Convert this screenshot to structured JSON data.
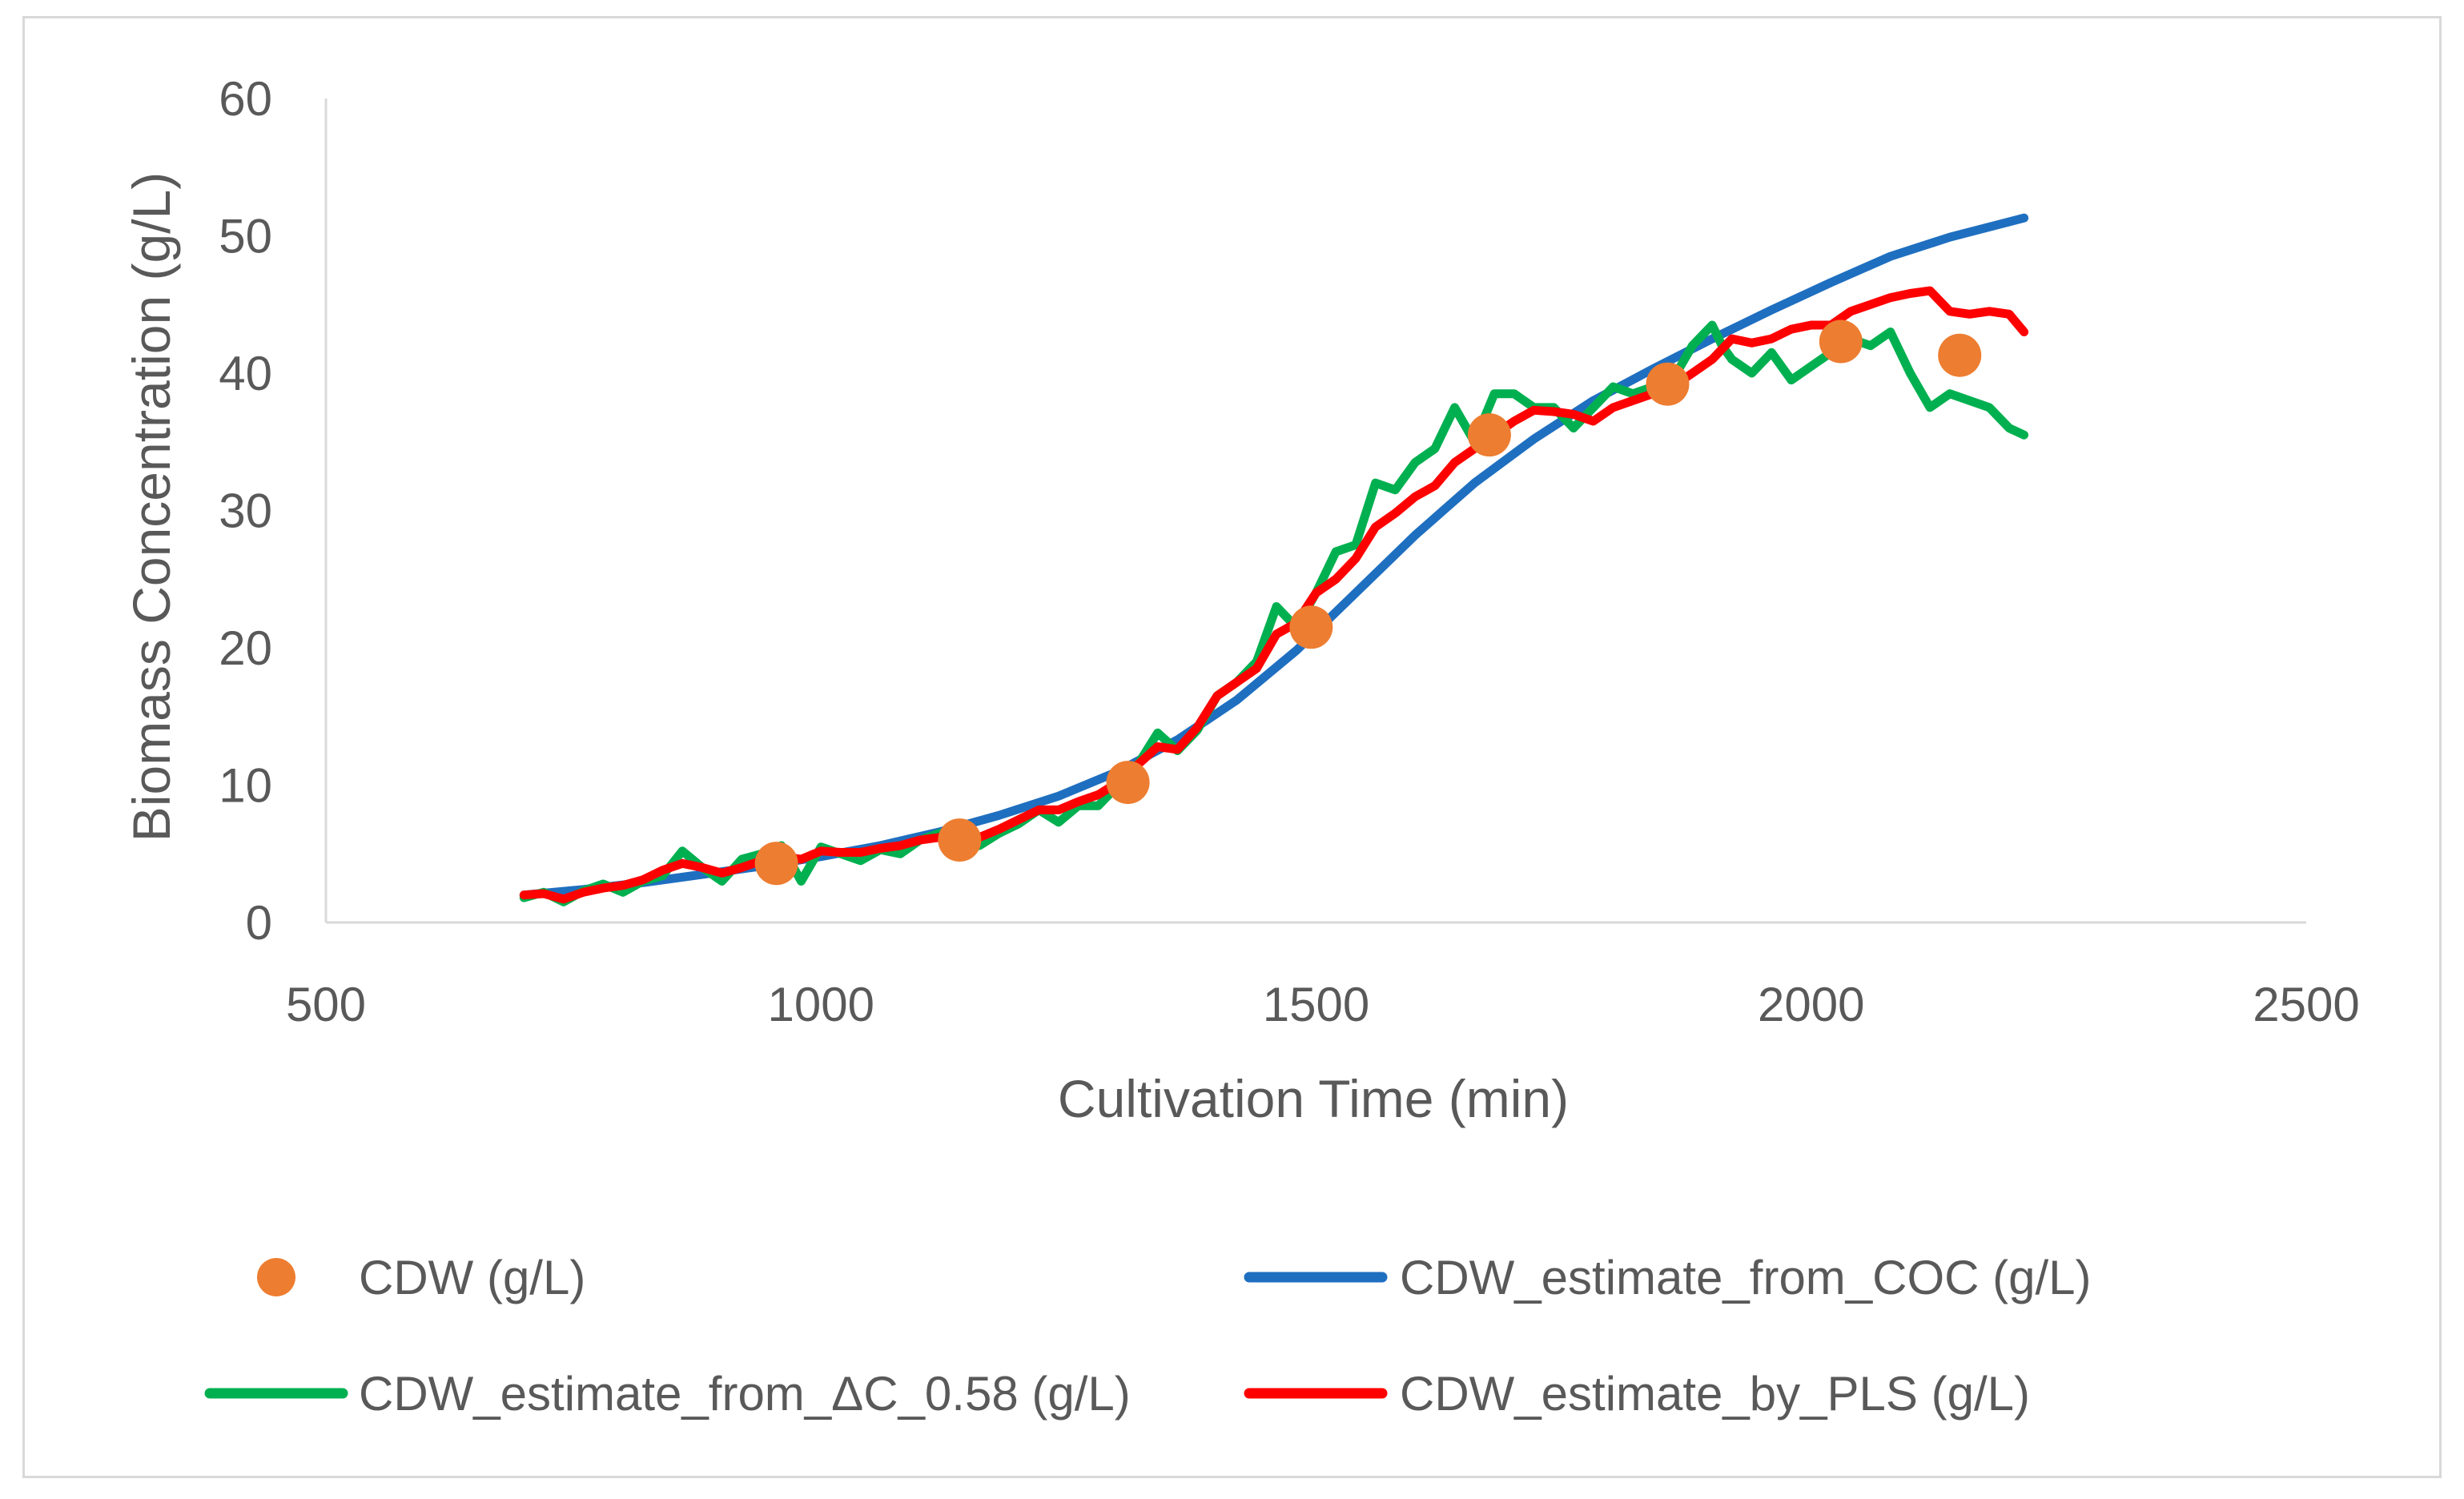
{
  "colors": {
    "axis": "#d9d9d9",
    "text": "#595959",
    "cdw": "#ed7d31",
    "coc": "#1f6fc0",
    "dc": "#00b050",
    "pls": "#ff0000"
  },
  "chart_data": {
    "type": "line",
    "title": "",
    "xlabel": "Cultivation Time (min)",
    "ylabel": "Biomass Concentration (g/L)",
    "xlim": [
      500,
      2500
    ],
    "ylim": [
      0,
      60
    ],
    "xticks": [
      500,
      1000,
      1500,
      2000,
      2500
    ],
    "yticks": [
      0,
      10,
      20,
      30,
      40,
      50,
      60
    ],
    "grid": false,
    "legend_position": "bottom",
    "series": [
      {
        "name": "CDW (g/L)",
        "kind": "scatter",
        "color": "#ed7d31",
        "x": [
          955,
          1140,
          1310,
          1495,
          1675,
          1855,
          2030,
          2150
        ],
        "y": [
          4.3,
          6.0,
          10.2,
          21.5,
          35.5,
          39.2,
          42.3,
          41.3
        ]
      },
      {
        "name": "CDW_estimate_from_COC (g/L)",
        "kind": "line",
        "color": "#1f6fc0",
        "x": [
          700,
          760,
          820,
          880,
          940,
          1000,
          1060,
          1120,
          1180,
          1240,
          1300,
          1360,
          1420,
          1480,
          1540,
          1600,
          1660,
          1720,
          1780,
          1840,
          1900,
          1960,
          2020,
          2080,
          2140,
          2215
        ],
        "y": [
          2.0,
          2.4,
          2.9,
          3.5,
          4.1,
          4.8,
          5.6,
          6.6,
          7.8,
          9.2,
          11.0,
          13.3,
          16.2,
          19.8,
          24.0,
          28.2,
          32.0,
          35.2,
          38.0,
          40.3,
          42.5,
          44.6,
          46.6,
          48.5,
          49.9,
          51.3
        ]
      },
      {
        "name": "CDW_estimate_from_ΔC_0.58 (g/L)",
        "kind": "line",
        "color": "#00b050",
        "x": [
          700,
          720,
          740,
          760,
          780,
          800,
          820,
          840,
          860,
          880,
          900,
          920,
          940,
          960,
          980,
          1000,
          1020,
          1040,
          1060,
          1080,
          1100,
          1120,
          1140,
          1160,
          1180,
          1200,
          1220,
          1240,
          1260,
          1280,
          1300,
          1320,
          1340,
          1360,
          1380,
          1400,
          1420,
          1440,
          1460,
          1480,
          1500,
          1520,
          1540,
          1560,
          1580,
          1600,
          1620,
          1640,
          1660,
          1680,
          1700,
          1720,
          1740,
          1760,
          1780,
          1800,
          1820,
          1840,
          1860,
          1880,
          1900,
          1910,
          1920,
          1940,
          1960,
          1980,
          2000,
          2020,
          2040,
          2060,
          2080,
          2100,
          2120,
          2140,
          2160,
          2180,
          2200,
          2215
        ],
        "y": [
          1.8,
          2.2,
          1.5,
          2.3,
          2.8,
          2.2,
          3.0,
          3.4,
          5.2,
          4.0,
          3.0,
          4.6,
          5.0,
          5.6,
          3.0,
          5.5,
          5.0,
          4.5,
          5.3,
          5.0,
          6.0,
          6.5,
          5.8,
          5.6,
          6.5,
          7.2,
          8.2,
          7.3,
          8.5,
          8.5,
          10.0,
          11.5,
          13.8,
          12.5,
          14.0,
          16.5,
          17.5,
          19.0,
          23.0,
          21.5,
          24.0,
          27.0,
          27.5,
          32.0,
          31.5,
          33.5,
          34.5,
          37.5,
          35.0,
          38.5,
          38.5,
          37.5,
          37.5,
          36.0,
          37.5,
          39.0,
          38.5,
          39.0,
          39.5,
          42.0,
          43.5,
          42.0,
          41.0,
          40.0,
          41.5,
          39.5,
          40.5,
          41.5,
          42.5,
          42.0,
          43.0,
          40.0,
          37.5,
          38.5,
          38.0,
          37.5,
          36.0,
          35.5
        ]
      },
      {
        "name": "CDW_estimate_by_PLS (g/L)",
        "kind": "line",
        "color": "#ff0000",
        "x": [
          700,
          720,
          740,
          760,
          780,
          800,
          820,
          840,
          860,
          880,
          900,
          920,
          940,
          960,
          980,
          1000,
          1020,
          1040,
          1060,
          1080,
          1100,
          1120,
          1140,
          1160,
          1180,
          1200,
          1220,
          1240,
          1260,
          1280,
          1300,
          1320,
          1340,
          1360,
          1380,
          1400,
          1420,
          1440,
          1460,
          1480,
          1500,
          1520,
          1540,
          1560,
          1580,
          1600,
          1620,
          1640,
          1660,
          1680,
          1700,
          1720,
          1740,
          1760,
          1780,
          1800,
          1820,
          1840,
          1860,
          1880,
          1900,
          1920,
          1940,
          1960,
          1980,
          2000,
          2020,
          2040,
          2060,
          2080,
          2100,
          2120,
          2140,
          2160,
          2180,
          2200,
          2215
        ],
        "y": [
          2.0,
          2.1,
          1.7,
          2.2,
          2.5,
          2.7,
          3.1,
          3.8,
          4.3,
          4.0,
          3.6,
          4.0,
          4.5,
          4.8,
          4.6,
          5.2,
          5.1,
          5.1,
          5.4,
          5.6,
          6.0,
          6.2,
          6.0,
          6.2,
          6.8,
          7.5,
          8.2,
          8.2,
          8.8,
          9.3,
          10.2,
          11.5,
          12.8,
          12.6,
          14.2,
          16.5,
          17.5,
          18.5,
          21.0,
          21.8,
          24.0,
          25.0,
          26.5,
          28.8,
          29.8,
          31.0,
          31.8,
          33.5,
          34.5,
          35.5,
          36.5,
          37.3,
          37.2,
          37.0,
          36.5,
          37.5,
          38.0,
          38.5,
          39.0,
          40.0,
          41.0,
          42.5,
          42.2,
          42.5,
          43.2,
          43.5,
          43.5,
          44.5,
          45.0,
          45.5,
          45.8,
          46.0,
          44.5,
          44.3,
          44.5,
          44.3,
          43.0
        ]
      }
    ]
  }
}
